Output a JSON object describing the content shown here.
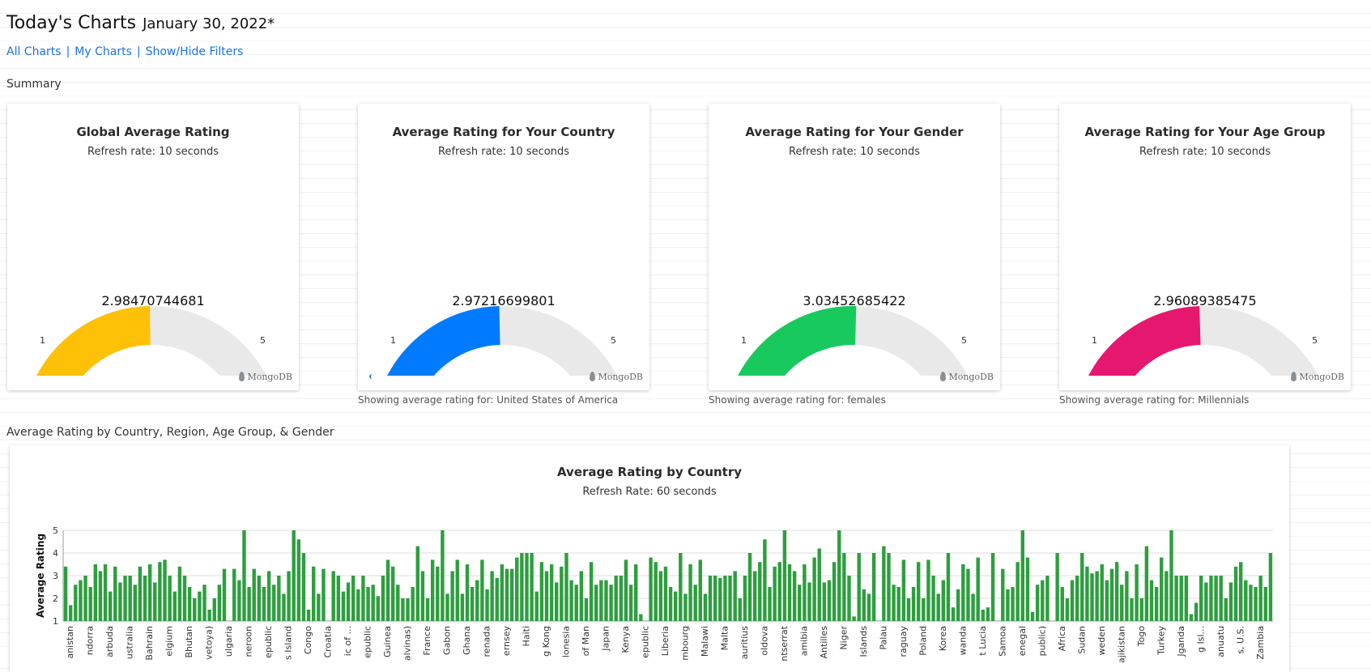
{
  "header": {
    "title": "Today's Charts",
    "date": "January 30, 2022*"
  },
  "nav": {
    "all_charts": "All Charts",
    "my_charts": "My Charts",
    "show_hide_filters": "Show/Hide Filters",
    "separator": "|"
  },
  "summary": {
    "label": "Summary",
    "cards": [
      {
        "title": "Global Average Rating",
        "refresh": "Refresh rate: 10 seconds",
        "value": "2.98470744681",
        "min": "1",
        "max": "5",
        "color": "#ffc107",
        "brand": "MongoDB"
      },
      {
        "title": "Average Rating for Your Country",
        "refresh": "Refresh rate: 10 seconds",
        "value": "2.97216699801",
        "min": "1",
        "max": "5",
        "color": "#007bff",
        "brand": "MongoDB",
        "showing": "Showing average rating for: United States of America"
      },
      {
        "title": "Average Rating for Your Gender",
        "refresh": "Refresh rate: 10 seconds",
        "value": "3.03452685422",
        "min": "1",
        "max": "5",
        "color": "#18c95e",
        "brand": "MongoDB",
        "showing": "Showing average rating for: females"
      },
      {
        "title": "Average Rating for Your Age Group",
        "refresh": "Refresh rate: 10 seconds",
        "value": "2.96089385475",
        "min": "1",
        "max": "5",
        "color": "#e6176f",
        "brand": "MongoDB",
        "showing": "Showing average rating for: Millennials"
      }
    ]
  },
  "section2": {
    "label": "Average Rating by Country, Region, Age Group, & Gender"
  },
  "chart_data": {
    "type": "bar",
    "title": "Average Rating by Country",
    "subtitle": "Refresh Rate: 60 seconds",
    "ylabel": "Average Rating",
    "ylim": [
      1,
      5
    ],
    "yticks": [
      1,
      2,
      3,
      4,
      5
    ],
    "bar_color": "#2e9e3f",
    "grid": true,
    "tick_labels": [
      "anistan",
      "ndorra",
      "arbuda",
      "ustralia",
      "Bahrain",
      "elgium",
      "Bhutan",
      "vetoya)",
      "ulgaria",
      "neroon",
      "epublic",
      "s Island",
      "Congo",
      "Croatia",
      "ic of ...",
      "epublic",
      "Guinea",
      "alvinas)",
      "France",
      "Gabon",
      "Ghana",
      "renada",
      "ernsey",
      "Haiti",
      "g Kong",
      "lonesia",
      "of Man",
      "Japan",
      "Kenya",
      "epublic",
      "Liberia",
      "mbourg",
      "Malawi",
      "Malta",
      "auritius",
      "oldova",
      "ntserrat",
      "amibia",
      "Antilles",
      "Niger",
      "Islands",
      "Palau",
      "raguay",
      "Poland",
      "Korea",
      "wanda",
      "t Lucia",
      "Samoa",
      "enegal",
      "public)",
      "Africa",
      "Sudan",
      "weden",
      "ajikistan",
      "Togo",
      "Turkey",
      "Jganda",
      "g Isl...",
      "anuatu",
      "s, U.S.",
      "Zambia"
    ],
    "values": [
      3.4,
      1.7,
      2.6,
      2.8,
      3.0,
      2.5,
      3.5,
      3.2,
      3.5,
      2.3,
      3.4,
      2.7,
      3.0,
      3.0,
      2.6,
      3.4,
      3.0,
      3.5,
      2.7,
      3.6,
      3.7,
      3.0,
      2.3,
      3.4,
      3.0,
      2.5,
      2.0,
      2.3,
      2.6,
      1.5,
      2.0,
      2.6,
      3.3,
      1.0,
      3.3,
      2.8,
      5.0,
      2.5,
      3.3,
      3.0,
      2.5,
      3.2,
      2.6,
      3.0,
      2.2,
      3.2,
      5.0,
      4.6,
      4.0,
      1.5,
      3.4,
      2.2,
      3.3,
      1.0,
      3.2,
      3.0,
      2.3,
      2.7,
      3.0,
      2.4,
      3.0,
      2.5,
      2.6,
      2.1,
      3.0,
      3.7,
      3.4,
      2.6,
      2.0,
      2.0,
      2.5,
      4.3,
      3.2,
      2.0,
      3.7,
      3.4,
      5.0,
      2.2,
      3.2,
      3.7,
      2.2,
      3.5,
      2.5,
      2.8,
      3.7,
      2.4,
      3.2,
      2.9,
      3.5,
      3.3,
      3.3,
      3.8,
      4.0,
      4.0,
      4.0,
      2.3,
      3.6,
      3.2,
      3.5,
      2.7,
      3.4,
      4.0,
      2.8,
      2.6,
      3.2,
      2.0,
      3.6,
      2.6,
      2.8,
      2.8,
      2.6,
      3.0,
      3.0,
      3.7,
      2.6,
      3.5,
      1.3,
      1.0,
      3.8,
      3.6,
      3.2,
      3.4,
      2.5,
      2.3,
      4.0,
      2.2,
      3.5,
      2.6,
      3.7,
      2.2,
      3.0,
      3.0,
      2.9,
      3.0,
      3.0,
      3.2,
      2.0,
      3.0,
      4.0,
      3.2,
      3.6,
      4.6,
      2.5,
      3.4,
      3.6,
      5.0,
      3.5,
      3.2,
      2.6,
      3.5,
      2.7,
      3.8,
      4.2,
      2.7,
      2.8,
      3.6,
      5.0,
      4.0,
      3.0,
      1.2,
      4.0,
      2.4,
      2.2,
      4.0,
      1.0,
      4.3,
      4.0,
      2.6,
      2.5,
      3.7,
      2.0,
      2.5,
      3.6,
      2.0,
      3.7,
      3.0,
      2.2,
      2.8,
      4.0,
      1.6,
      2.4,
      3.5,
      3.3,
      2.2,
      3.8,
      1.5,
      1.6,
      4.0,
      1.0,
      3.3,
      2.4,
      2.5,
      3.6,
      5.0,
      3.8,
      1.4,
      2.6,
      2.8,
      3.0,
      1.0,
      4.0,
      2.5,
      2.0,
      2.8,
      3.0,
      4.0,
      3.4,
      3.1,
      3.2,
      3.5,
      2.8,
      3.3,
      3.6,
      2.6,
      3.2,
      2.0,
      3.5,
      2.0,
      4.3,
      2.8,
      2.5,
      3.8,
      3.2,
      5.0,
      3.0,
      3.0,
      3.0,
      1.3,
      1.8,
      3.0,
      2.7,
      3.0,
      3.0,
      3.0,
      2.0,
      2.7,
      3.4,
      3.6,
      2.8,
      2.6,
      2.5,
      3.0,
      2.5,
      4.0
    ]
  }
}
